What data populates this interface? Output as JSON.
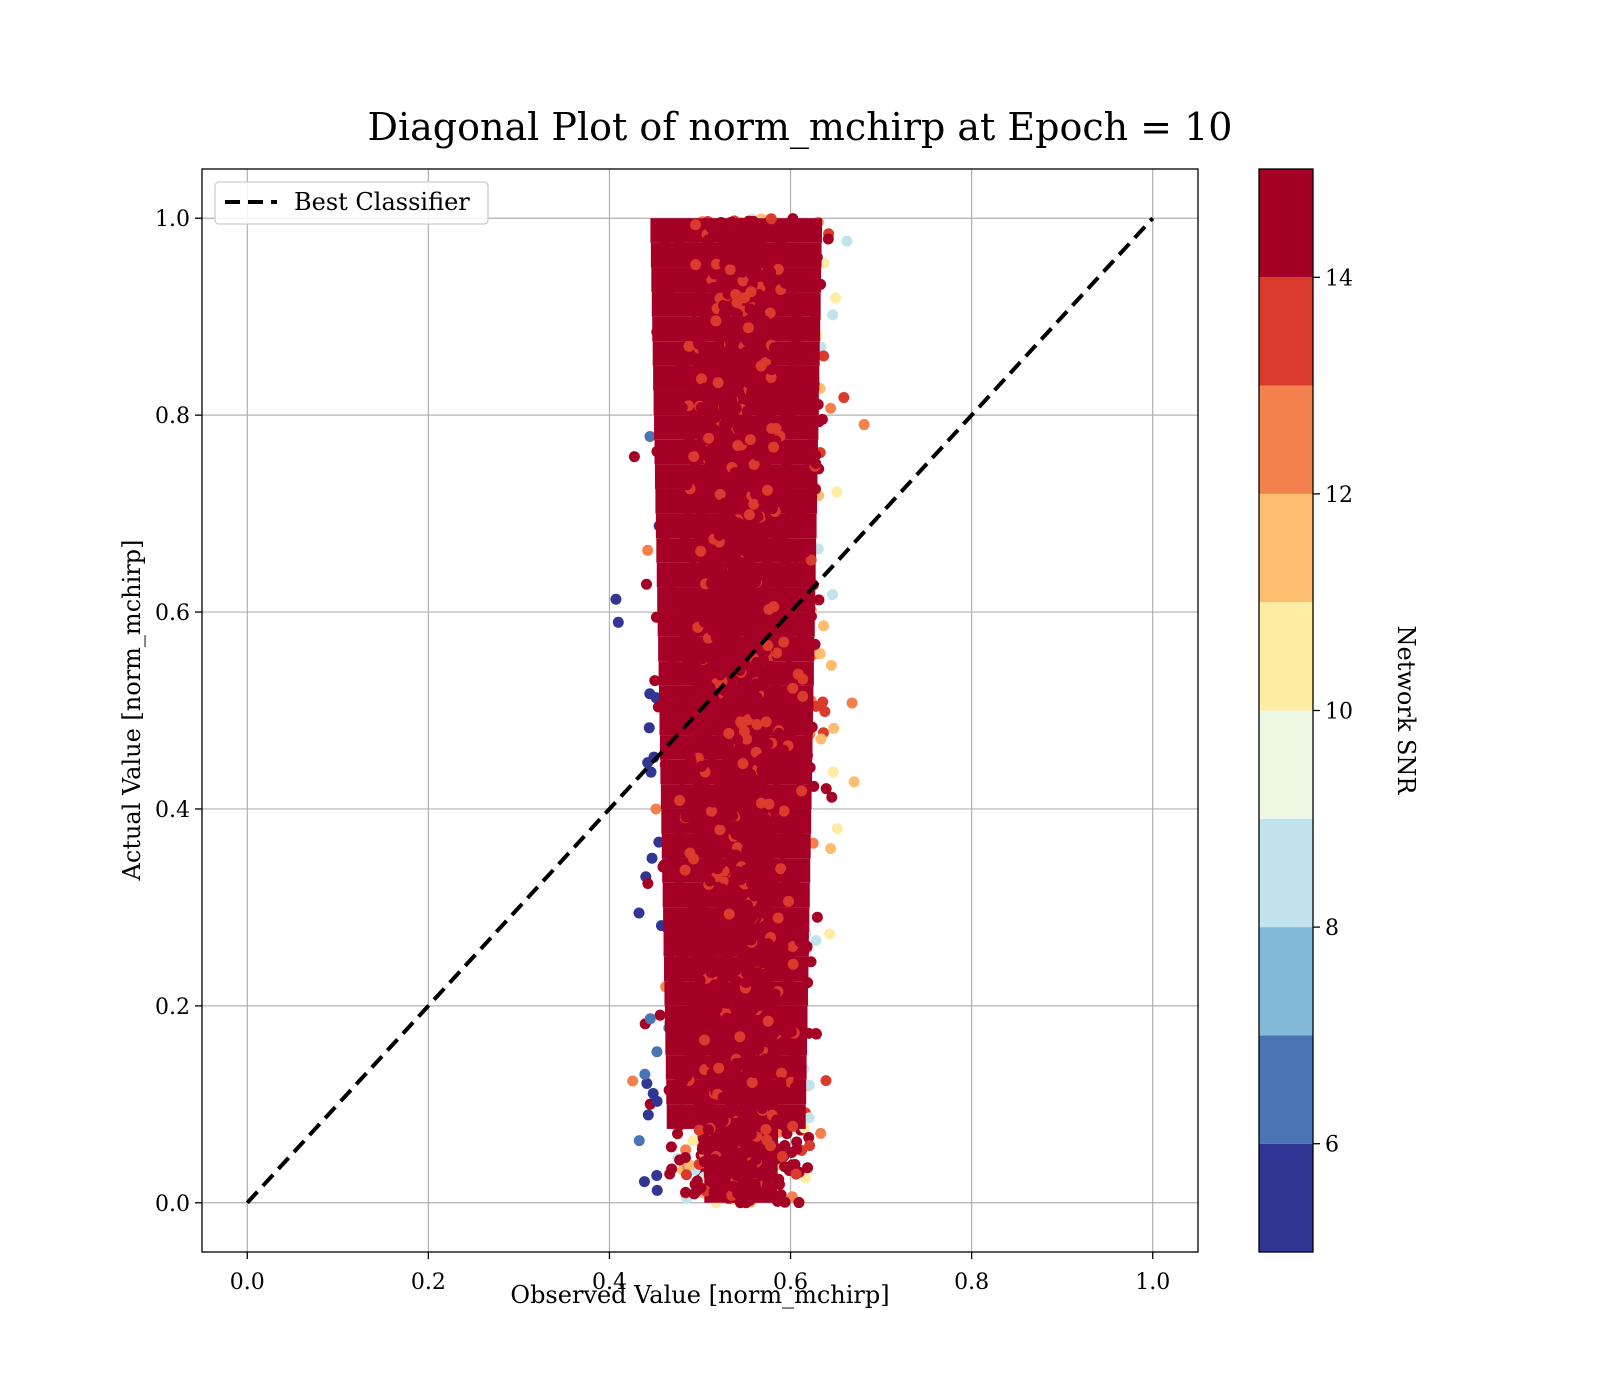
{
  "chart_data": {
    "type": "scatter",
    "title": "Diagonal Plot of norm_mchirp at Epoch = 10",
    "xlabel": "Observed Value [norm_mchirp]",
    "ylabel": "Actual Value [norm_mchirp]",
    "xlim": [
      -0.05,
      1.05
    ],
    "ylim": [
      -0.05,
      1.05
    ],
    "x_ticks": [
      "0.0",
      "0.2",
      "0.4",
      "0.6",
      "0.8",
      "1.0"
    ],
    "y_ticks": [
      "0.0",
      "0.2",
      "0.4",
      "0.6",
      "0.8",
      "1.0"
    ],
    "grid": true,
    "legend": {
      "position": "upper-left",
      "entries": [
        {
          "label": "Best Classifier",
          "style": "dashed",
          "color": "#000000"
        }
      ]
    },
    "reference_line": {
      "name": "Best Classifier",
      "x": [
        0.0,
        1.0
      ],
      "y": [
        0.0,
        1.0
      ]
    },
    "scatter_cloud": {
      "description_of_distribution": "dense vertical band",
      "x_center": 0.55,
      "x_core_range": [
        0.46,
        0.63
      ],
      "x_outlier_range": [
        0.4,
        0.78
      ],
      "y_range": [
        0.0,
        1.0
      ],
      "dominant_snr": 15
    },
    "colorbar": {
      "label": "Network SNR",
      "range": [
        5,
        15
      ],
      "ticks": [
        "6",
        "8",
        "10",
        "12",
        "14"
      ],
      "tick_values": [
        6,
        8,
        10,
        12,
        14
      ],
      "bins": 10,
      "colors": [
        "#313695",
        "#4a74b4",
        "#83b9d8",
        "#c0e3ee",
        "#eff8e3",
        "#fdecA2",
        "#fcbe6e",
        "#f4814d",
        "#db3b2c",
        "#a50026"
      ]
    }
  }
}
